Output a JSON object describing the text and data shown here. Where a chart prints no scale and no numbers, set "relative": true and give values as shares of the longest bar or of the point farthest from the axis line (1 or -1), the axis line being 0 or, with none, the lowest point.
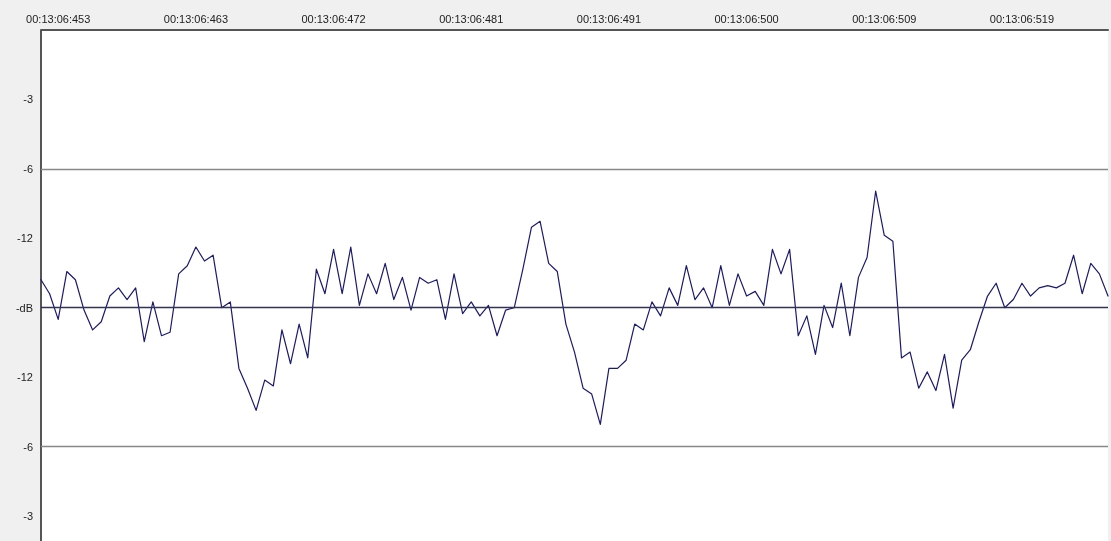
{
  "chart_data": {
    "type": "line",
    "relative": true,
    "marker": "none",
    "grid": false,
    "line_style": "solid",
    "categories": [
      null,
      null,
      "00:13:06:453",
      null,
      null,
      null,
      null,
      null,
      null,
      null,
      null,
      null,
      null,
      null,
      null,
      null,
      null,
      null,
      "00:13:06:463",
      null,
      null,
      null,
      null,
      null,
      null,
      null,
      null,
      null,
      null,
      null,
      null,
      null,
      null,
      null,
      "00:13:06:472",
      null,
      null,
      null,
      null,
      null,
      null,
      null,
      null,
      null,
      null,
      null,
      null,
      null,
      null,
      null,
      "00:13:06:481",
      null,
      null,
      null,
      null,
      null,
      null,
      null,
      null,
      null,
      null,
      null,
      null,
      null,
      null,
      null,
      "00:13:06:491",
      null,
      null,
      null,
      null,
      null,
      null,
      null,
      null,
      null,
      null,
      null,
      null,
      null,
      null,
      null,
      "00:13:06:500",
      null,
      null,
      null,
      null,
      null,
      null,
      null,
      null,
      null,
      null,
      null,
      null,
      null,
      null,
      null,
      "00:13:06:509",
      null,
      null,
      null,
      null,
      null,
      null,
      null,
      null,
      null,
      null,
      null,
      null,
      null,
      null,
      null,
      "00:13:06:519",
      null,
      null,
      null,
      null,
      null,
      null,
      null,
      null,
      null,
      null
    ],
    "series": [
      {
        "color": "#1a1a6e",
        "values": [
          0.24,
          0.12,
          -0.1,
          0.31,
          0.24,
          -0.02,
          -0.19,
          -0.12,
          0.1,
          0.17,
          0.07,
          0.17,
          -0.29,
          0.05,
          -0.24,
          -0.21,
          0.29,
          0.36,
          0.52,
          0.4,
          0.45,
          0,
          0.05,
          -0.52,
          -0.69,
          -0.88,
          -0.62,
          -0.67,
          -0.19,
          -0.48,
          -0.14,
          -0.43,
          0.33,
          0.12,
          0.5,
          0.12,
          0.52,
          0.02,
          0.29,
          0.12,
          0.38,
          0.07,
          0.26,
          -0.02,
          0.26,
          0.21,
          0.24,
          -0.1,
          0.29,
          -0.05,
          0.05,
          -0.07,
          0.02,
          -0.24,
          -0.02,
          0,
          0.33,
          0.69,
          0.74,
          0.38,
          0.31,
          -0.14,
          -0.38,
          -0.69,
          -0.74,
          -1,
          -0.52,
          -0.52,
          -0.45,
          -0.14,
          -0.19,
          0.05,
          -0.07,
          0.17,
          0.02,
          0.36,
          0.07,
          0.17,
          0,
          0.36,
          0.02,
          0.29,
          0.1,
          0.14,
          0.02,
          0.5,
          0.29,
          0.5,
          -0.24,
          -0.07,
          -0.4,
          0.02,
          -0.17,
          0.21,
          -0.24,
          0.26,
          0.43,
          1,
          0.62,
          0.57,
          -0.43,
          -0.38,
          -0.69,
          -0.55,
          -0.71,
          -0.4,
          -0.86,
          -0.45,
          -0.36,
          -0.12,
          0.1,
          0.21,
          0,
          0.07,
          0.21,
          0.1,
          0.17,
          0.19,
          0.17,
          0.21,
          0.45,
          0.12,
          0.38,
          0.29,
          0.1
        ]
      }
    ],
    "ref_lines": [
      {
        "axis": "y",
        "value": 1.19,
        "color": "#888888"
      },
      {
        "axis": "y",
        "value": 0,
        "color": "#333355"
      },
      {
        "axis": "y",
        "value": -1.19,
        "color": "#888888"
      }
    ],
    "annotations": [
      "-3",
      "-6",
      "-12",
      "-dB",
      "-12",
      "-6",
      "-3"
    ]
  }
}
